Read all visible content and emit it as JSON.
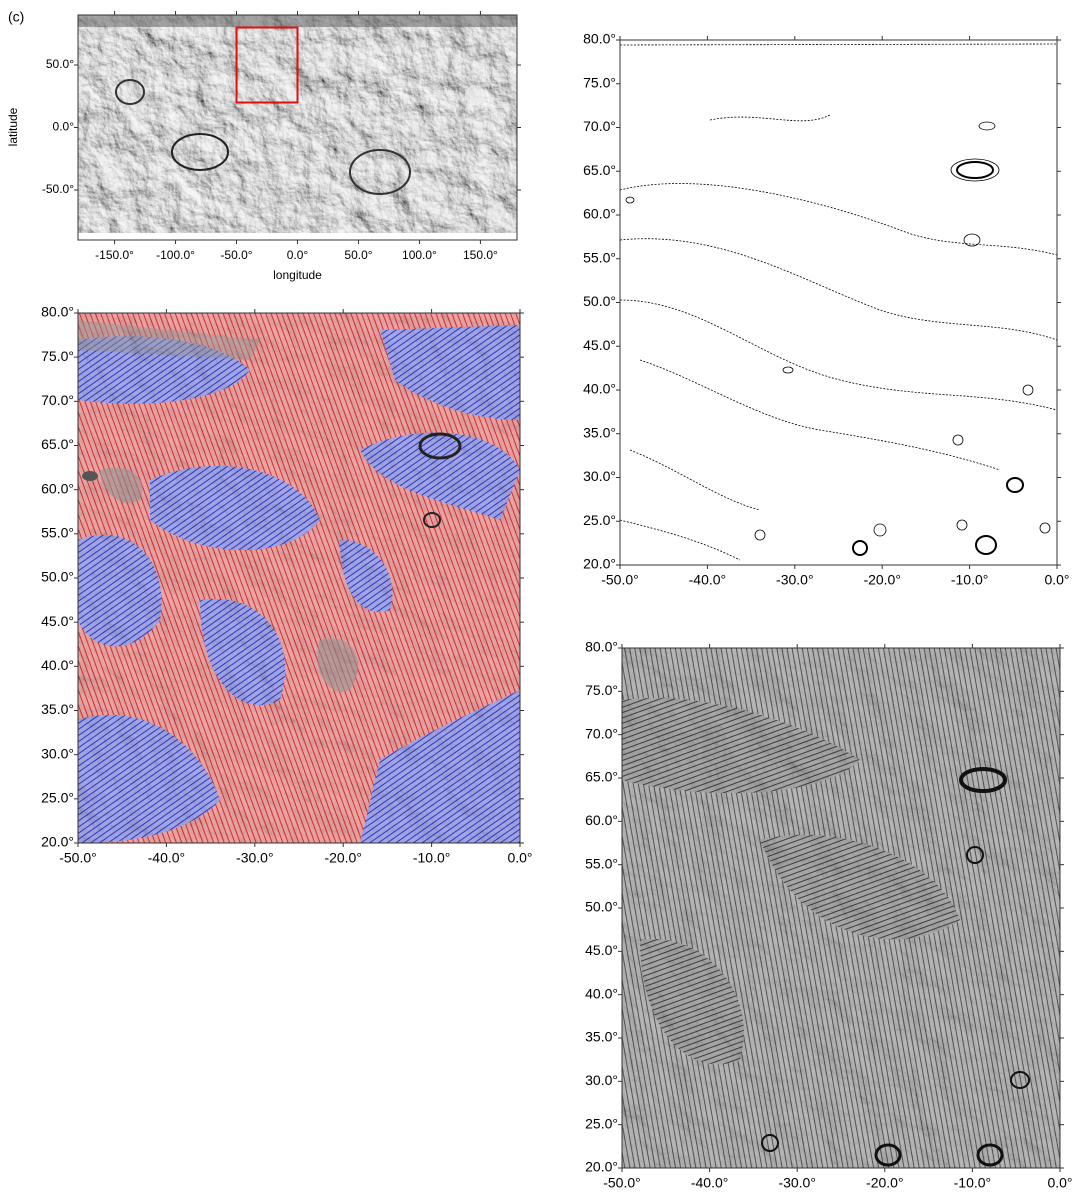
{
  "label": "(c)",
  "overview": {
    "xlabel": "longitude",
    "ylabel": "latitude",
    "xlim": [
      -180,
      180
    ],
    "ylim": [
      -90,
      90
    ],
    "xticks": [
      {
        "value": -150,
        "label": "-150.0°"
      },
      {
        "value": -100,
        "label": "-100.0°"
      },
      {
        "value": -50,
        "label": "-50.0°"
      },
      {
        "value": 0,
        "label": "0.0°"
      },
      {
        "value": 50,
        "label": "50.0°"
      },
      {
        "value": 100,
        "label": "100.0°"
      },
      {
        "value": 150,
        "label": "150.0°"
      }
    ],
    "yticks": [
      {
        "value": -50,
        "label": "-50.0°"
      },
      {
        "value": 0,
        "label": "0.0°"
      },
      {
        "value": 50,
        "label": "50.0°"
      }
    ],
    "region": {
      "x": [
        -50,
        0
      ],
      "y": [
        20,
        80
      ]
    }
  },
  "panels": [
    {
      "xlim": [
        -50,
        0
      ],
      "ylim": [
        20,
        80
      ],
      "xticks": [
        {
          "value": -50,
          "label": "-50.0°"
        },
        {
          "value": -40,
          "label": "-40.0°"
        },
        {
          "value": -30,
          "label": "-30.0°"
        },
        {
          "value": -20,
          "label": "-20.0°"
        },
        {
          "value": -10,
          "label": "-10.0°"
        },
        {
          "value": 0,
          "label": "0.0°"
        }
      ],
      "yticks": [
        {
          "value": 20,
          "label": "20.0°"
        },
        {
          "value": 25,
          "label": "25.0°"
        },
        {
          "value": 30,
          "label": "30.0°"
        },
        {
          "value": 35,
          "label": "35.0°"
        },
        {
          "value": 40,
          "label": "40.0°"
        },
        {
          "value": 45,
          "label": "45.0°"
        },
        {
          "value": 50,
          "label": "50.0°"
        },
        {
          "value": 55,
          "label": "55.0°"
        },
        {
          "value": 60,
          "label": "60.0°"
        },
        {
          "value": 65,
          "label": "65.0°"
        },
        {
          "value": 70,
          "label": "70.0°"
        },
        {
          "value": 75,
          "label": "75.0°"
        },
        {
          "value": 80,
          "label": "80.0°"
        }
      ]
    },
    {
      "xlim": [
        -50,
        0
      ],
      "ylim": [
        20,
        80
      ],
      "xticks": [
        {
          "value": -50,
          "label": "-50.0°"
        },
        {
          "value": -40,
          "label": "-40.0°"
        },
        {
          "value": -30,
          "label": "-30.0°"
        },
        {
          "value": -20,
          "label": "-20.0°"
        },
        {
          "value": -10,
          "label": "-10.0°"
        },
        {
          "value": 0,
          "label": "0.0°"
        }
      ],
      "yticks": [
        {
          "value": 20,
          "label": "20.0°"
        },
        {
          "value": 25,
          "label": "25.0°"
        },
        {
          "value": 30,
          "label": "30.0°"
        },
        {
          "value": 35,
          "label": "35.0°"
        },
        {
          "value": 40,
          "label": "40.0°"
        },
        {
          "value": 45,
          "label": "45.0°"
        },
        {
          "value": 50,
          "label": "50.0°"
        },
        {
          "value": 55,
          "label": "55.0°"
        },
        {
          "value": 60,
          "label": "60.0°"
        },
        {
          "value": 65,
          "label": "65.0°"
        },
        {
          "value": 70,
          "label": "70.0°"
        },
        {
          "value": 75,
          "label": "75.0°"
        },
        {
          "value": 80,
          "label": "80.0°"
        }
      ]
    },
    {
      "xlim": [
        -50,
        0
      ],
      "ylim": [
        20,
        80
      ],
      "xticks": [
        {
          "value": -50,
          "label": "-50.0°"
        },
        {
          "value": -40,
          "label": "-40.0°"
        },
        {
          "value": -30,
          "label": "-30.0°"
        },
        {
          "value": -20,
          "label": "-20.0°"
        },
        {
          "value": -10,
          "label": "-10.0°"
        },
        {
          "value": 0,
          "label": "0.0°"
        }
      ],
      "yticks": [
        {
          "value": 20,
          "label": "20.0°"
        },
        {
          "value": 25,
          "label": "25.0°"
        },
        {
          "value": 30,
          "label": "30.0°"
        },
        {
          "value": 35,
          "label": "35.0°"
        },
        {
          "value": 40,
          "label": "40.0°"
        },
        {
          "value": 45,
          "label": "45.0°"
        },
        {
          "value": 50,
          "label": "50.0°"
        },
        {
          "value": 55,
          "label": "55.0°"
        },
        {
          "value": 60,
          "label": "60.0°"
        },
        {
          "value": 65,
          "label": "65.0°"
        },
        {
          "value": 70,
          "label": "70.0°"
        },
        {
          "value": 75,
          "label": "75.0°"
        },
        {
          "value": 80,
          "label": "80.0°"
        }
      ]
    }
  ]
}
